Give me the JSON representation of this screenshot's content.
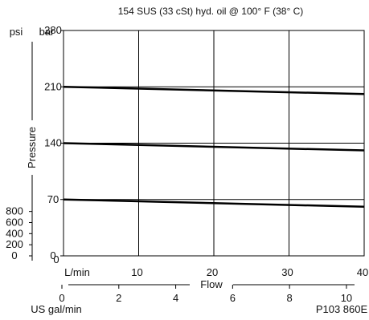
{
  "subtitle": "154 SUS (33 cSt) hyd. oil @ 100° F (38° C)",
  "drawing_number": "P103 860E",
  "chart_data": {
    "type": "line",
    "x_label_primary": "L/min",
    "x_label_secondary": "US gal/min",
    "x_axis_title": "Flow",
    "y_axis_title": "Pressure",
    "y_unit_primary": "bar",
    "y_unit_secondary": "psi",
    "x_range_lmin": [
      0,
      40
    ],
    "y_range_bar": [
      0,
      280
    ],
    "x_ticks_lmin": [
      0,
      10,
      20,
      30,
      40
    ],
    "x_ticks_gpm": [
      0,
      2,
      4,
      6,
      8,
      10
    ],
    "y_ticks_bar": [
      0,
      70,
      140,
      210,
      280
    ],
    "y_ticks_psi": [
      0,
      200,
      400,
      600,
      800
    ],
    "series": [
      {
        "x": [
          0,
          40
        ],
        "y": [
          210,
          201
        ]
      },
      {
        "x": [
          0,
          40
        ],
        "y": [
          140,
          131
        ]
      },
      {
        "x": [
          0,
          40
        ],
        "y": [
          70,
          61
        ]
      }
    ],
    "grid": true
  }
}
